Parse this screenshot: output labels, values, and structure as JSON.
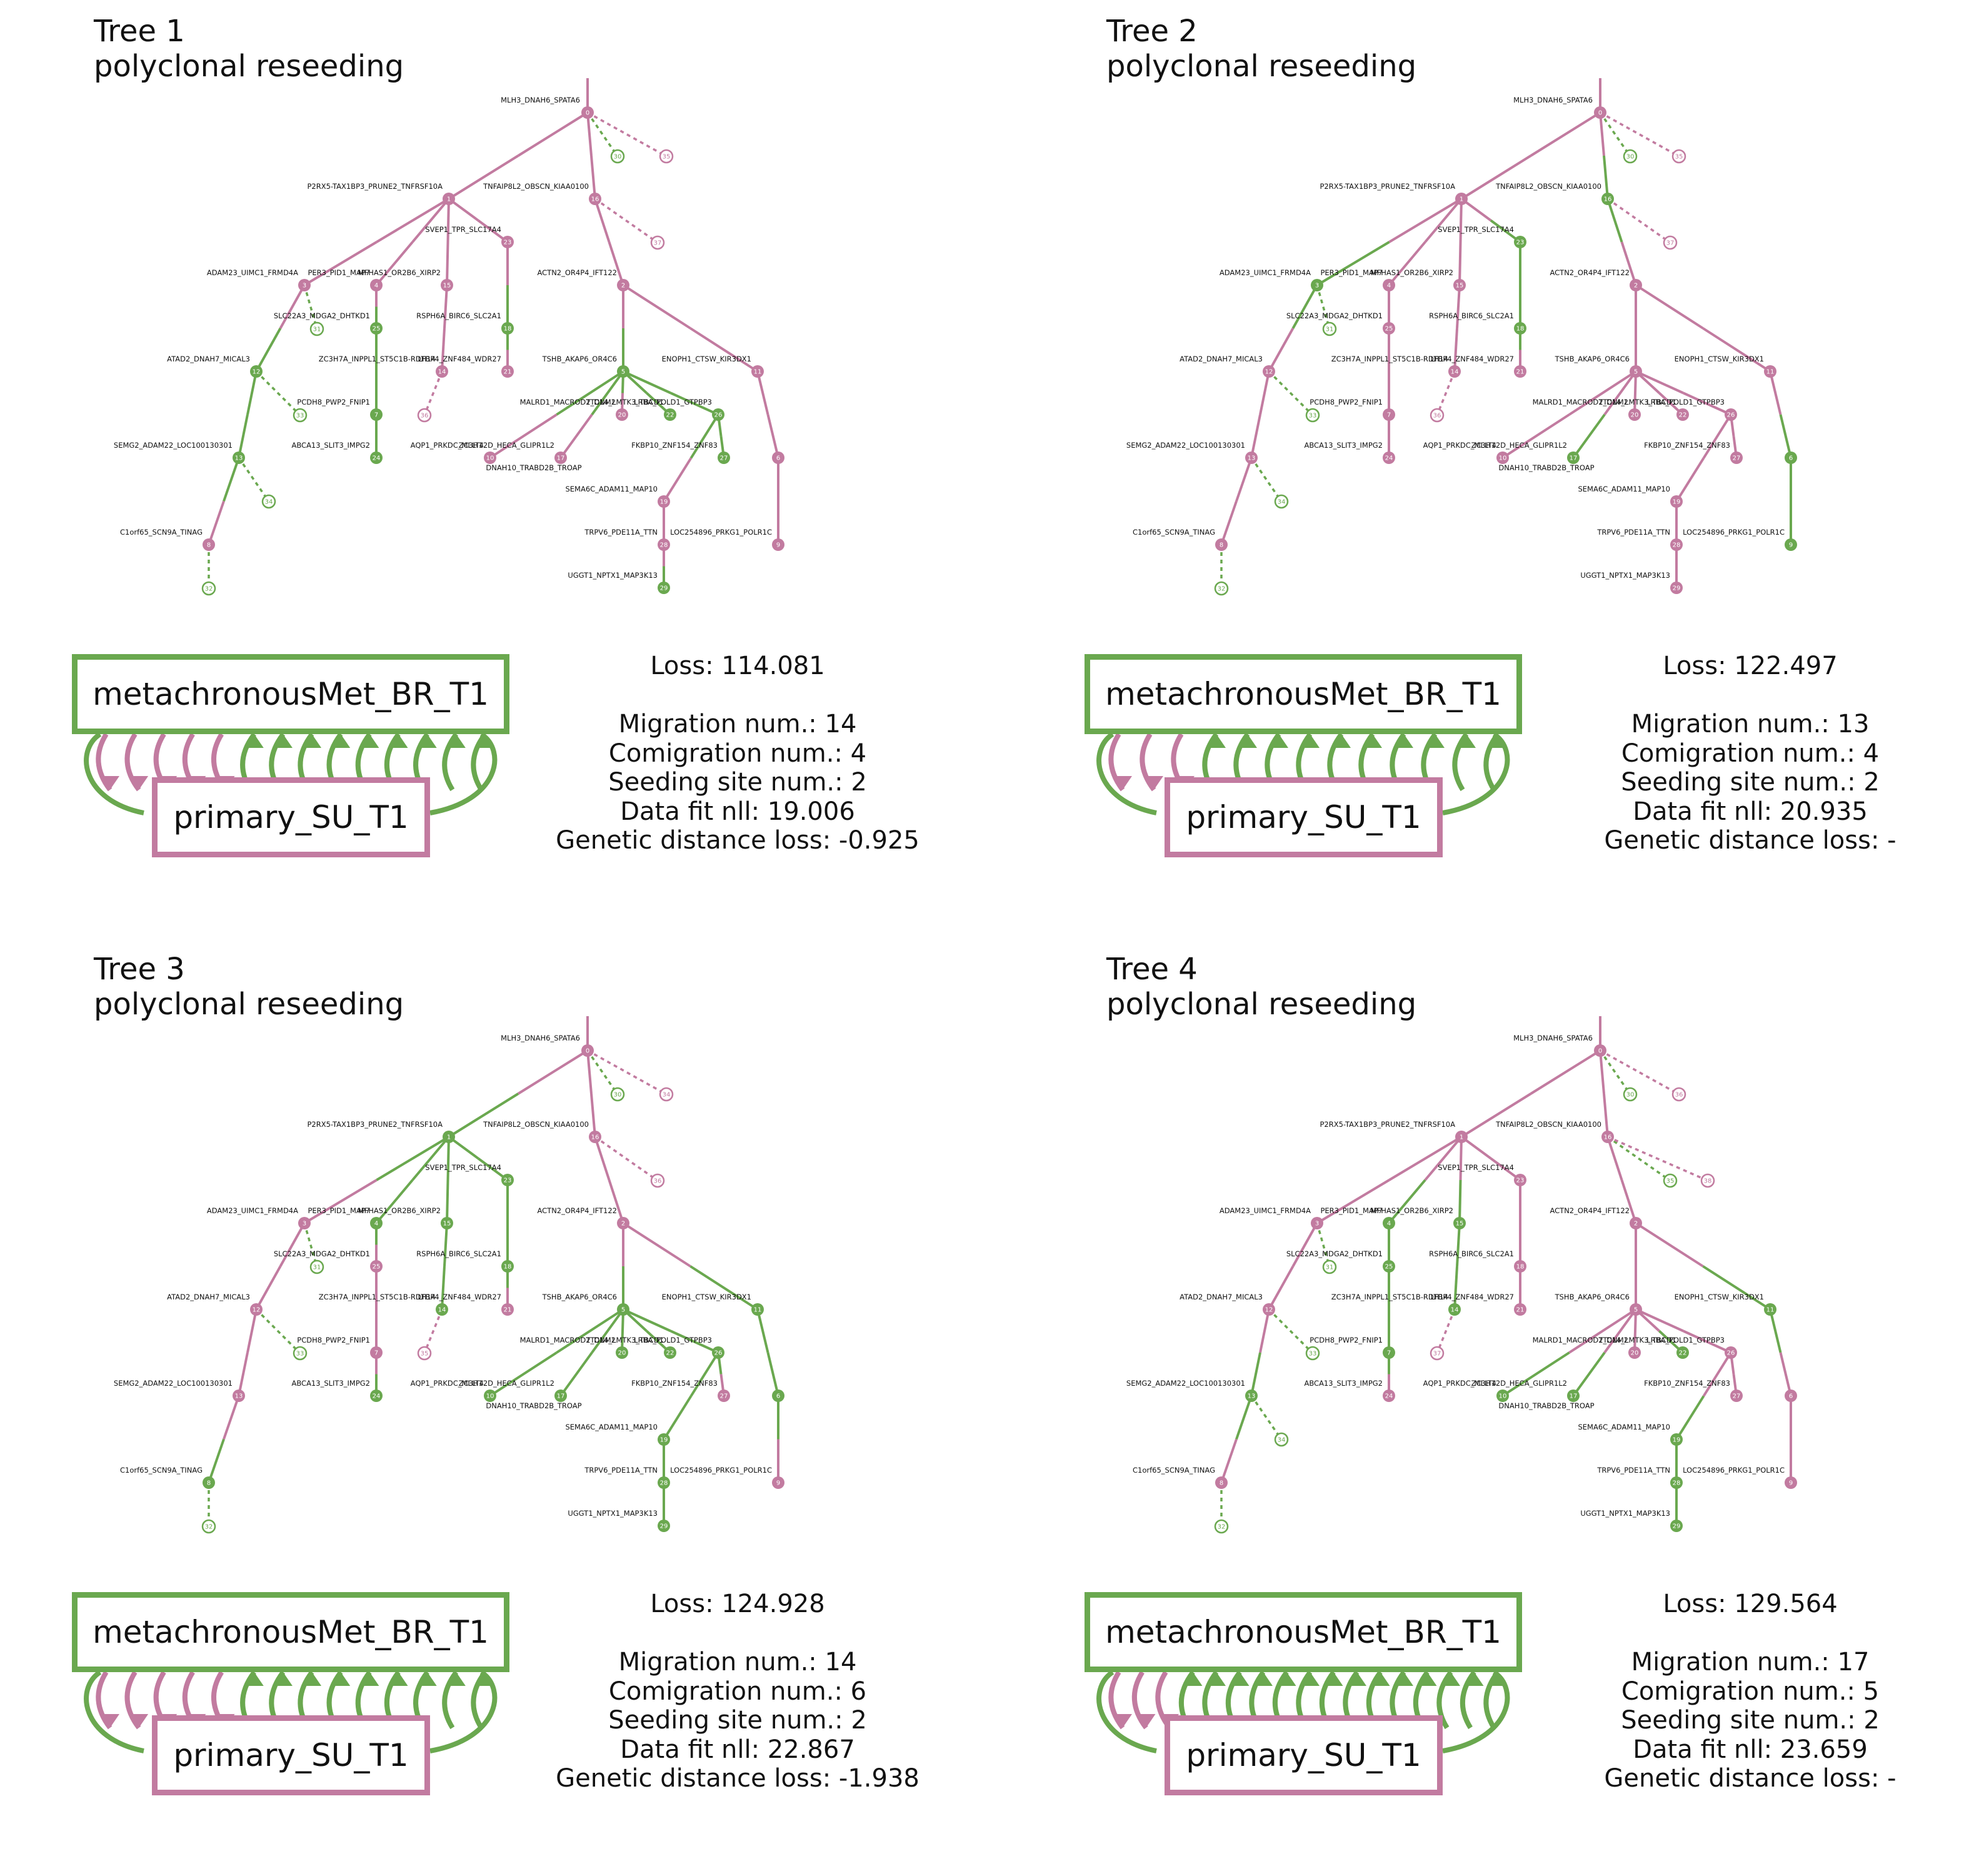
{
  "colors": {
    "primary": "#c27ba0",
    "metastasis": "#6aa84f"
  },
  "labels": {
    "0": "MLH3_DNAH6_SPATA6",
    "1": "P2RX5-TAX1BP3_PRUNE2_TNFRSF10A",
    "16": "TNFAIP8L2_OBSCN_KIAA0100",
    "23": "SVEP1_TPR_SLC17A4",
    "3": "ADAM23_UIMC1_FRMD4A",
    "4": "PER3_PID1_MAP7",
    "15": "MFHAS1_OR2B6_XIRP2",
    "2": "ACTN2_OR4P4_IFT122",
    "25": "SLC22A3_MDGA2_DHTKD1",
    "18": "RSPH6A_BIRC6_SLC2A1",
    "12": "ATAD2_DNAH7_MICAL3",
    "14": "ZC3H7A_INPPL1_ST5C1B-RDH14",
    "5": "TSHB_AKAP6_OR4C6",
    "11": "ENOPH1_CTSW_KIR3DX1",
    "21": "LTBP4_ZNF484_WDR27",
    "7": "PCDH8_PWP2_FNIP1",
    "20": "MALRD1_MACROD2_DNM2",
    "22": "TTC14_LMTK3_TBCD1",
    "17": "ZC3H12D_HECA_GLIPR1L2",
    "26": "LRBA_POLD1_GTPBP3",
    "13": "SEMG2_ADAM22_LOC100130301",
    "24": "ABCA13_SLIT3_IMPG2",
    "10": "AQP1_PRKDC_MLLT4",
    "27": "FKBP10_ZNF154_ZNF83",
    "6": "",
    "19": "SEMA6C_ADAM11_MAP10",
    "8": "C1orf65_SCN9A_TINAG",
    "9": "LOC254896_PRKG1_POLR1C",
    "28": "TRPV6_PDE11A_TTN",
    "29": "UGGT1_NPTX1_MAP3K13",
    "dnah10": "DNAH10_TRABD2B_TROAP"
  },
  "site_labels": {
    "metastasis": "metachronousMet_BR_T1",
    "primary": "primary_SU_T1"
  },
  "trees": [
    {
      "title": "Tree 1",
      "subtitle": "polyclonal reseeding",
      "stats": {
        "loss": "Loss: 114.081",
        "migration": "Migration num.: 14",
        "comigration": "Comigration num.: 4",
        "seeding": "Seeding site num.: 2",
        "datafit": "Data fit nll: 19.006",
        "genetic": "Genetic distance loss: -0.925"
      },
      "node_colors": {
        "0": "P",
        "1": "P",
        "16": "P",
        "23": "P",
        "3": "P",
        "4": "P",
        "15": "P",
        "2": "P",
        "25": "G",
        "18": "G",
        "12": "G",
        "14": "P",
        "5": "G",
        "11": "P",
        "21": "P",
        "7": "G",
        "20": "P",
        "22": "G",
        "17": "P",
        "26": "G",
        "13": "G",
        "24": "G",
        "10": "P",
        "27": "G",
        "6": "P",
        "19": "P",
        "8": "P",
        "9": "P",
        "28": "P",
        "29": "G"
      },
      "leaves": [
        {
          "label": "30",
          "parent": "0",
          "color": "G"
        },
        {
          "label": "35",
          "parent": "0",
          "color": "P"
        },
        {
          "label": "37",
          "parent": "16",
          "color": "P"
        },
        {
          "label": "31",
          "parent": "3",
          "color": "G"
        },
        {
          "label": "33",
          "parent": "12",
          "color": "G"
        },
        {
          "label": "36",
          "parent": "14",
          "color": "P"
        },
        {
          "label": "34",
          "parent": "13",
          "color": "G"
        },
        {
          "label": "32",
          "parent": "8",
          "color": "G"
        }
      ],
      "migration_arrows": {
        "to_primary": 5,
        "to_metastasis": 9,
        "outer_arc": true
      }
    },
    {
      "title": "Tree 2",
      "subtitle": "polyclonal reseeding",
      "stats": {
        "loss": "Loss: 122.497",
        "migration": "Migration num.: 13",
        "comigration": "Comigration num.: 4",
        "seeding": "Seeding site num.: 2",
        "datafit": "Data fit nll: 20.935",
        "genetic": "Genetic distance loss: -"
      },
      "node_colors": {
        "0": "P",
        "1": "P",
        "16": "G",
        "23": "G",
        "3": "G",
        "4": "P",
        "15": "P",
        "2": "P",
        "25": "P",
        "18": "G",
        "12": "P",
        "14": "P",
        "5": "P",
        "11": "P",
        "21": "P",
        "7": "P",
        "20": "P",
        "22": "P",
        "17": "G",
        "26": "P",
        "13": "P",
        "24": "P",
        "10": "P",
        "27": "P",
        "6": "G",
        "19": "P",
        "8": "P",
        "9": "G",
        "28": "P",
        "29": "P"
      },
      "leaves": [
        {
          "label": "30",
          "parent": "0",
          "color": "G"
        },
        {
          "label": "35",
          "parent": "0",
          "color": "P"
        },
        {
          "label": "37",
          "parent": "16",
          "color": "P"
        },
        {
          "label": "31",
          "parent": "3",
          "color": "G"
        },
        {
          "label": "33",
          "parent": "12",
          "color": "G"
        },
        {
          "label": "36",
          "parent": "14",
          "color": "P"
        },
        {
          "label": "34",
          "parent": "13",
          "color": "G"
        },
        {
          "label": "32",
          "parent": "8",
          "color": "G"
        }
      ],
      "migration_arrows": {
        "to_primary": 3,
        "to_metastasis": 10,
        "outer_arc": true
      }
    },
    {
      "title": "Tree 3",
      "subtitle": "polyclonal reseeding",
      "stats": {
        "loss": "Loss: 124.928",
        "migration": "Migration num.: 14",
        "comigration": "Comigration num.: 6",
        "seeding": "Seeding site num.: 2",
        "datafit": "Data fit nll: 22.867",
        "genetic": "Genetic distance loss: -1.938"
      },
      "node_colors": {
        "0": "P",
        "1": "G",
        "16": "P",
        "23": "G",
        "3": "P",
        "4": "G",
        "15": "G",
        "2": "P",
        "25": "P",
        "18": "G",
        "12": "P",
        "14": "G",
        "5": "G",
        "11": "G",
        "21": "P",
        "7": "P",
        "20": "G",
        "22": "G",
        "17": "G",
        "26": "G",
        "13": "P",
        "24": "G",
        "10": "G",
        "27": "P",
        "6": "G",
        "19": "G",
        "8": "G",
        "9": "P",
        "28": "G",
        "29": "G"
      },
      "leaves": [
        {
          "label": "30",
          "parent": "0",
          "color": "G"
        },
        {
          "label": "34",
          "parent": "0",
          "color": "P"
        },
        {
          "label": "36",
          "parent": "16",
          "color": "P"
        },
        {
          "label": "31",
          "parent": "3",
          "color": "G"
        },
        {
          "label": "33",
          "parent": "12",
          "color": "G"
        },
        {
          "label": "35",
          "parent": "14",
          "color": "P"
        },
        {
          "label": "32",
          "parent": "8",
          "color": "G"
        }
      ],
      "migration_arrows": {
        "to_primary": 5,
        "to_metastasis": 9,
        "outer_arc": true
      }
    },
    {
      "title": "Tree 4",
      "subtitle": "polyclonal reseeding",
      "stats": {
        "loss": "Loss: 129.564",
        "migration": "Migration num.: 17",
        "comigration": "Comigration num.: 5",
        "seeding": "Seeding site num.: 2",
        "datafit": "Data fit nll: 23.659",
        "genetic": "Genetic distance loss: -"
      },
      "node_colors": {
        "0": "P",
        "1": "P",
        "16": "P",
        "23": "P",
        "3": "P",
        "4": "G",
        "15": "G",
        "2": "P",
        "25": "G",
        "18": "P",
        "12": "P",
        "14": "G",
        "5": "P",
        "11": "G",
        "21": "P",
        "7": "G",
        "20": "P",
        "22": "G",
        "17": "G",
        "26": "P",
        "13": "G",
        "24": "P",
        "10": "G",
        "27": "P",
        "6": "P",
        "19": "G",
        "8": "P",
        "9": "P",
        "28": "G",
        "29": "G"
      },
      "leaves": [
        {
          "label": "30",
          "parent": "0",
          "color": "G"
        },
        {
          "label": "36",
          "parent": "0",
          "color": "P"
        },
        {
          "label": "35",
          "parent": "16",
          "color": "G"
        },
        {
          "label": "38",
          "parent": "16",
          "color": "P"
        },
        {
          "label": "33",
          "parent": "12",
          "color": "G"
        },
        {
          "label": "31",
          "parent": "3",
          "color": "G"
        },
        {
          "label": "37",
          "parent": "14",
          "color": "P"
        },
        {
          "label": "34",
          "parent": "13",
          "color": "G"
        },
        {
          "label": "32",
          "parent": "8",
          "color": "G"
        }
      ],
      "migration_arrows": {
        "to_primary": 3,
        "to_metastasis": 14,
        "outer_arc": true
      }
    }
  ]
}
